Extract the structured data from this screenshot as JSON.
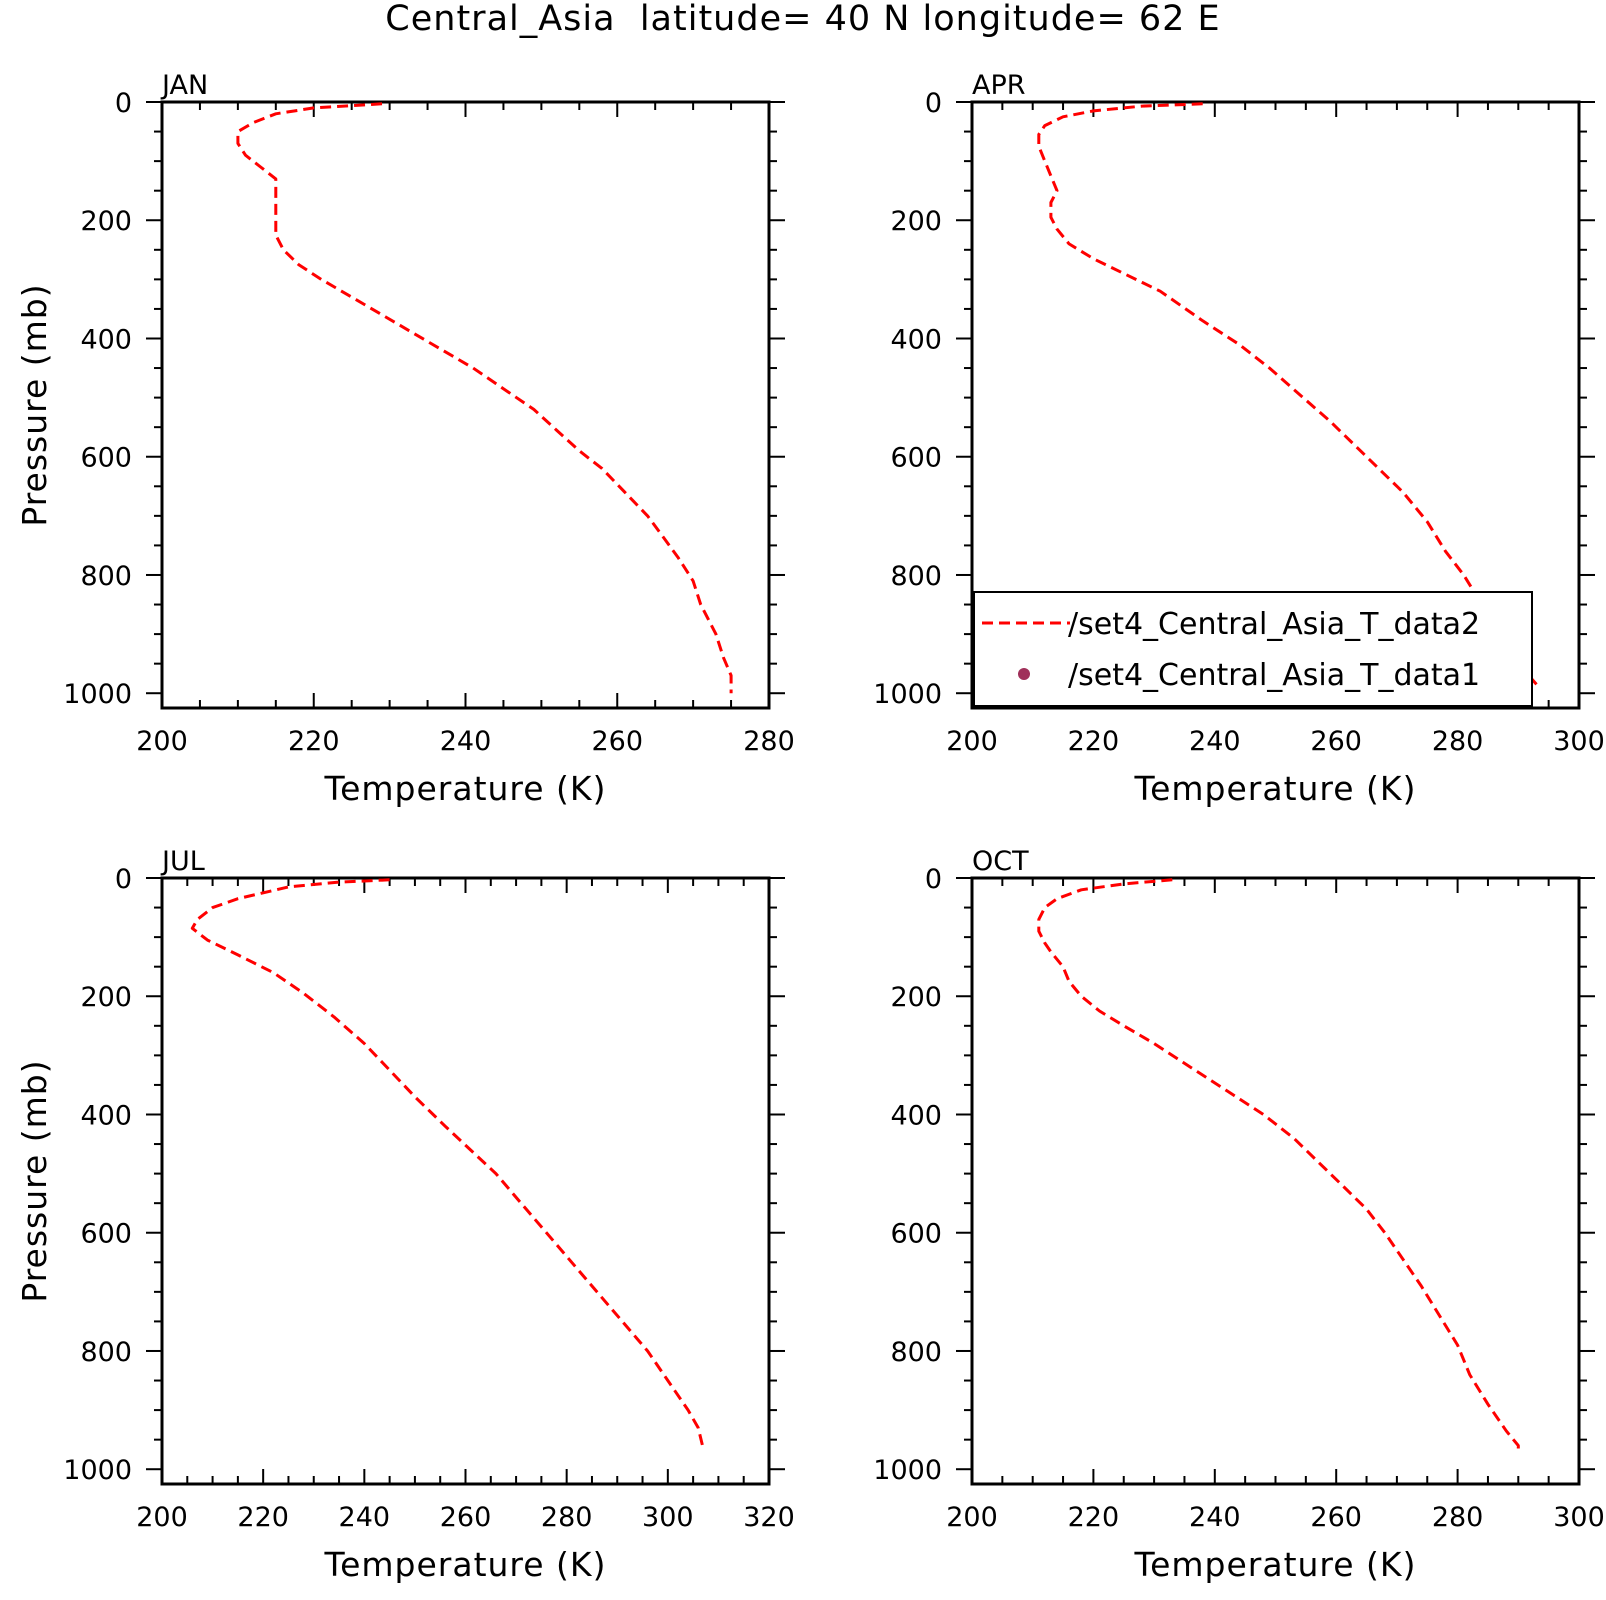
{
  "title": "Central_Asia  latitude= 40 N longitude= 62 E",
  "colors": {
    "model_line": "#ff0000",
    "obs_marker": "#a0305a",
    "axes": "#000000"
  },
  "legend": {
    "entries": [
      {
        "label": "/set4_Central_Asia_T_data2",
        "style": "dashed-line"
      },
      {
        "label": "/set4_Central_Asia_T_data1",
        "style": "dot"
      }
    ]
  },
  "chart_data": [
    {
      "type": "line",
      "panel_label": "JAN",
      "xlabel": "Temperature (K)",
      "ylabel": "Pressure (mb)",
      "xlim": [
        200,
        280
      ],
      "ylim": [
        0,
        1025
      ],
      "y_inverted": true,
      "xticks": [
        "200",
        "220",
        "240",
        "260",
        "280"
      ],
      "yticks": [
        "0",
        "200",
        "400",
        "600",
        "800",
        "1000"
      ],
      "series": [
        {
          "name": "/set4_Central_Asia_T_data2",
          "points": [
            [
              229,
              3
            ],
            [
              220,
              10
            ],
            [
              215,
              20
            ],
            [
              212,
              35
            ],
            [
              210,
              50
            ],
            [
              210,
              70
            ],
            [
              211,
              90
            ],
            [
              213,
              110
            ],
            [
              215,
              130
            ],
            [
              215,
              150
            ],
            [
              215,
              180
            ],
            [
              215,
              200
            ],
            [
              215,
              225
            ],
            [
              216,
              250
            ],
            [
              218,
              275
            ],
            [
              221,
              300
            ],
            [
              225,
              330
            ],
            [
              229,
              360
            ],
            [
              233,
              390
            ],
            [
              237,
              420
            ],
            [
              241,
              450
            ],
            [
              245,
              485
            ],
            [
              249,
              520
            ],
            [
              252,
              555
            ],
            [
              255,
              590
            ],
            [
              258,
              620
            ],
            [
              261,
              660
            ],
            [
              264,
              700
            ],
            [
              266,
              735
            ],
            [
              268,
              770
            ],
            [
              270,
              810
            ],
            [
              271,
              850
            ],
            [
              273,
              900
            ],
            [
              274,
              940
            ],
            [
              275,
              970
            ],
            [
              275,
              985
            ],
            [
              275,
              1000
            ]
          ]
        }
      ]
    },
    {
      "type": "line",
      "panel_label": "APR",
      "xlabel": "Temperature (K)",
      "ylabel": "",
      "xlim": [
        200,
        300
      ],
      "ylim": [
        0,
        1025
      ],
      "y_inverted": true,
      "xticks": [
        "200",
        "220",
        "240",
        "260",
        "280",
        "300"
      ],
      "yticks": [
        "0",
        "200",
        "400",
        "600",
        "800",
        "1000"
      ],
      "series": [
        {
          "name": "/set4_Central_Asia_T_data2",
          "points": [
            [
              238,
              3
            ],
            [
              228,
              7
            ],
            [
              220,
              15
            ],
            [
              215,
              25
            ],
            [
              212,
              40
            ],
            [
              211,
              55
            ],
            [
              211,
              75
            ],
            [
              212,
              100
            ],
            [
              213,
              125
            ],
            [
              214,
              150
            ],
            [
              213,
              170
            ],
            [
              213,
              195
            ],
            [
              214,
              215
            ],
            [
              216,
              240
            ],
            [
              220,
              265
            ],
            [
              225,
              290
            ],
            [
              231,
              320
            ],
            [
              238,
              370
            ],
            [
              244,
              410
            ],
            [
              249,
              450
            ],
            [
              254,
              495
            ],
            [
              259,
              540
            ],
            [
              263,
              580
            ],
            [
              267,
              620
            ],
            [
              271,
              660
            ],
            [
              275,
              710
            ],
            [
              278,
              760
            ],
            [
              281,
              800
            ],
            [
              284,
              850
            ],
            [
              287,
              900
            ],
            [
              290,
              950
            ],
            [
              293,
              985
            ]
          ]
        }
      ]
    },
    {
      "type": "line",
      "panel_label": "JUL",
      "xlabel": "Temperature (K)",
      "ylabel": "Pressure (mb)",
      "xlim": [
        200,
        320
      ],
      "ylim": [
        0,
        1025
      ],
      "y_inverted": true,
      "xticks": [
        "200",
        "220",
        "240",
        "260",
        "280",
        "300",
        "320"
      ],
      "yticks": [
        "0",
        "200",
        "400",
        "600",
        "800",
        "1000"
      ],
      "series": [
        {
          "name": "/set4_Central_Asia_T_data2",
          "points": [
            [
              245,
              3
            ],
            [
              235,
              7
            ],
            [
              225,
              15
            ],
            [
              215,
              35
            ],
            [
              210,
              50
            ],
            [
              207,
              70
            ],
            [
              206,
              85
            ],
            [
              209,
              105
            ],
            [
              215,
              130
            ],
            [
              222,
              160
            ],
            [
              228,
              195
            ],
            [
              234,
              235
            ],
            [
              240,
              280
            ],
            [
              245,
              325
            ],
            [
              250,
              370
            ],
            [
              256,
              420
            ],
            [
              261,
              460
            ],
            [
              266,
              500
            ],
            [
              271,
              550
            ],
            [
              276,
              600
            ],
            [
              281,
              650
            ],
            [
              286,
              700
            ],
            [
              291,
              750
            ],
            [
              296,
              800
            ],
            [
              300,
              850
            ],
            [
              304,
              900
            ],
            [
              306,
              930
            ],
            [
              307,
              965
            ]
          ]
        }
      ]
    },
    {
      "type": "line",
      "panel_label": "OCT",
      "xlabel": "Temperature (K)",
      "ylabel": "",
      "xlim": [
        200,
        300
      ],
      "ylim": [
        0,
        1025
      ],
      "y_inverted": true,
      "xticks": [
        "200",
        "220",
        "240",
        "260",
        "280",
        "300"
      ],
      "yticks": [
        "0",
        "200",
        "400",
        "600",
        "800",
        "1000"
      ],
      "series": [
        {
          "name": "/set4_Central_Asia_T_data2",
          "points": [
            [
              233,
              3
            ],
            [
              225,
              10
            ],
            [
              218,
              20
            ],
            [
              214,
              35
            ],
            [
              212,
              50
            ],
            [
              211,
              70
            ],
            [
              211,
              90
            ],
            [
              212,
              110
            ],
            [
              213,
              125
            ],
            [
              215,
              150
            ],
            [
              216,
              175
            ],
            [
              218,
              200
            ],
            [
              221,
              225
            ],
            [
              225,
              250
            ],
            [
              230,
              280
            ],
            [
              236,
              320
            ],
            [
              242,
              360
            ],
            [
              248,
              400
            ],
            [
              253,
              440
            ],
            [
              257,
              480
            ],
            [
              261,
              520
            ],
            [
              265,
              560
            ],
            [
              268,
              600
            ],
            [
              271,
              645
            ],
            [
              274,
              690
            ],
            [
              277,
              740
            ],
            [
              280,
              790
            ],
            [
              282,
              840
            ],
            [
              285,
              890
            ],
            [
              288,
              935
            ],
            [
              290,
              960
            ],
            [
              290,
              975
            ]
          ]
        }
      ]
    }
  ]
}
